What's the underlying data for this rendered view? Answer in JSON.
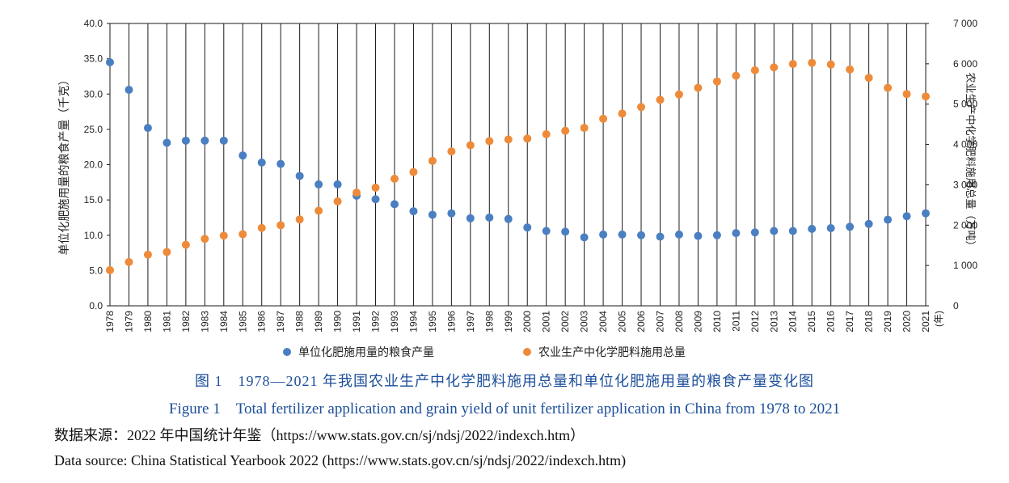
{
  "chart_data": {
    "type": "scatter",
    "x": [
      "1978",
      "1979",
      "1980",
      "1981",
      "1982",
      "1983",
      "1984",
      "1985",
      "1986",
      "1987",
      "1988",
      "1989",
      "1990",
      "1991",
      "1992",
      "1993",
      "1994",
      "1995",
      "1996",
      "1997",
      "1998",
      "1999",
      "2000",
      "2001",
      "2002",
      "2003",
      "2004",
      "2005",
      "2006",
      "2007",
      "2008",
      "2009",
      "2010",
      "2011",
      "2012",
      "2013",
      "2014",
      "2015",
      "2016",
      "2017",
      "2018",
      "2019",
      "2020",
      "2021"
    ],
    "x_unit_label": "(年)",
    "left_axis": {
      "label": "单位化肥施用量的粮食产量（千克）",
      "ylim": [
        0,
        40
      ],
      "ticks": [
        "0.0",
        "5.0",
        "10.0",
        "15.0",
        "20.0",
        "25.0",
        "30.0",
        "35.0",
        "40.0"
      ]
    },
    "right_axis": {
      "label": "农业生产中化学肥料施用总量（万吨）",
      "ylim": [
        0,
        7000
      ],
      "ticks": [
        "0",
        "1 000",
        "2 000",
        "3 000",
        "4 000",
        "5 000",
        "6 000",
        "7 000"
      ]
    },
    "series": [
      {
        "name": "单位化肥施用量的粮食产量",
        "axis": "left",
        "color": "#4a7fc1",
        "values": [
          34.5,
          30.6,
          25.2,
          23.1,
          23.4,
          23.4,
          23.4,
          21.3,
          20.3,
          20.1,
          18.4,
          17.2,
          17.2,
          15.6,
          15.1,
          14.4,
          13.4,
          12.9,
          13.1,
          12.4,
          12.5,
          12.3,
          11.1,
          10.6,
          10.5,
          9.7,
          10.1,
          10.1,
          10.0,
          9.8,
          10.1,
          9.9,
          10.0,
          10.3,
          10.4,
          10.6,
          10.6,
          10.9,
          11.0,
          11.2,
          11.6,
          12.2,
          12.7,
          13.1
        ]
      },
      {
        "name": "农业生产中化学肥料施用总量",
        "axis": "right",
        "color": "#ee8b3a",
        "values": [
          884,
          1086,
          1269,
          1335,
          1513,
          1660,
          1740,
          1776,
          1931,
          1999,
          2142,
          2357,
          2590,
          2805,
          2930,
          3152,
          3318,
          3594,
          3828,
          3981,
          4084,
          4124,
          4146,
          4254,
          4339,
          4412,
          4637,
          4766,
          4928,
          5108,
          5239,
          5404,
          5562,
          5704,
          5839,
          5912,
          5996,
          6023,
          5984,
          5859,
          5653,
          5404,
          5251,
          5191
        ]
      }
    ]
  },
  "caption": {
    "cn": "图 1　1978—2021 年我国农业生产中化学肥料施用总量和单位化肥施用量的粮食产量变化图",
    "en": "Figure 1　Total fertilizer application and grain yield of unit fertilizer application in China from 1978 to 2021"
  },
  "source": {
    "cn": "数据来源：2022 年中国统计年鉴（https://www.stats.gov.cn/sj/ndsj/2022/indexch.htm）",
    "en": "Data source: China Statistical Yearbook 2022 (https://www.stats.gov.cn/sj/ndsj/2022/indexch.htm)"
  }
}
